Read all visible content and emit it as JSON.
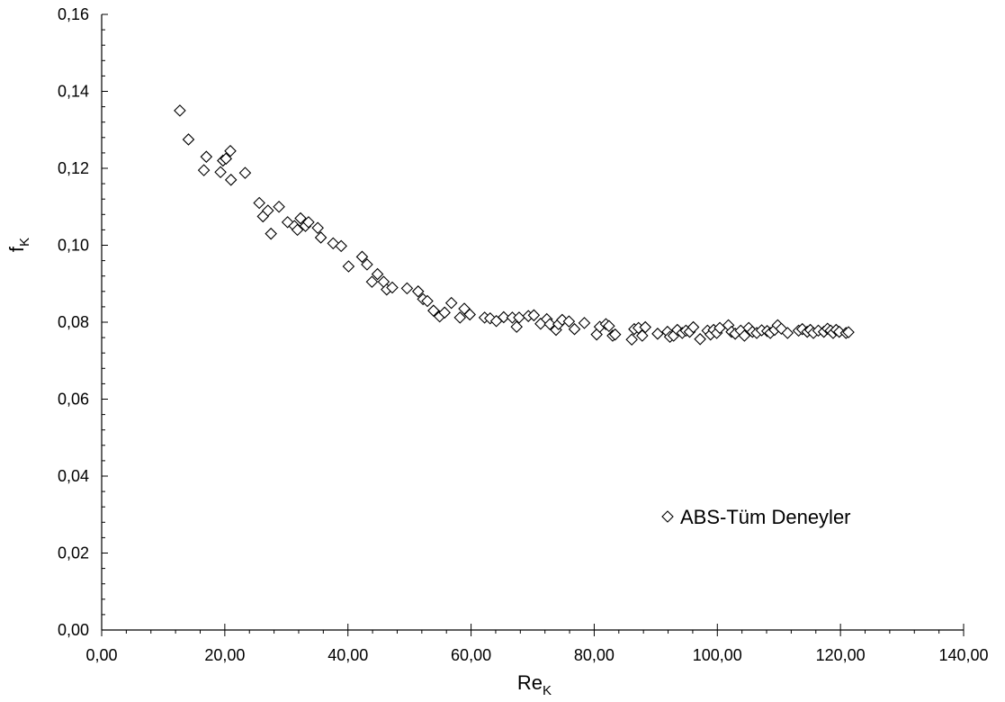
{
  "chart_data": {
    "type": "scatter",
    "title": "",
    "xlabel": {
      "main": "Re",
      "sub": "K"
    },
    "ylabel": {
      "main": "f",
      "sub": "K"
    },
    "xlim": [
      0,
      140
    ],
    "ylim": [
      0,
      0.16
    ],
    "x_ticks": [
      0,
      20,
      40,
      60,
      80,
      100,
      120,
      140
    ],
    "x_tick_labels": [
      "0,00",
      "20,00",
      "40,00",
      "60,00",
      "80,00",
      "100,00",
      "120,00",
      "140,00"
    ],
    "y_ticks": [
      0,
      0.02,
      0.04,
      0.06,
      0.08,
      0.1,
      0.12,
      0.14,
      0.16
    ],
    "y_tick_labels": [
      "0,00",
      "0,02",
      "0,04",
      "0,06",
      "0,08",
      "0,10",
      "0,12",
      "0,14",
      "0,16"
    ],
    "grid": false,
    "legend_position": "bottom-right",
    "colors": {
      "marker_fill": "#ffffff",
      "marker_stroke": "#000000",
      "axis": "#000000"
    },
    "series": [
      {
        "name": "ABS-Tüm Deneyler",
        "marker": "diamond-open",
        "points": [
          [
            12.7,
            0.135
          ],
          [
            14.1,
            0.1275
          ],
          [
            16.6,
            0.1195
          ],
          [
            17.0,
            0.123
          ],
          [
            19.3,
            0.119
          ],
          [
            19.7,
            0.122
          ],
          [
            20.2,
            0.1225
          ],
          [
            20.9,
            0.1245
          ],
          [
            21.0,
            0.117
          ],
          [
            23.3,
            0.1188
          ],
          [
            25.6,
            0.111
          ],
          [
            26.2,
            0.1075
          ],
          [
            27.0,
            0.109
          ],
          [
            27.5,
            0.103
          ],
          [
            28.8,
            0.11
          ],
          [
            30.2,
            0.106
          ],
          [
            31.3,
            0.105
          ],
          [
            31.8,
            0.104
          ],
          [
            32.3,
            0.107
          ],
          [
            33.1,
            0.105
          ],
          [
            33.6,
            0.106
          ],
          [
            35.1,
            0.1045
          ],
          [
            35.6,
            0.102
          ],
          [
            37.6,
            0.1005
          ],
          [
            38.9,
            0.0998
          ],
          [
            40.1,
            0.0945
          ],
          [
            42.3,
            0.097
          ],
          [
            43.1,
            0.095
          ],
          [
            43.9,
            0.0905
          ],
          [
            44.8,
            0.0925
          ],
          [
            45.8,
            0.0905
          ],
          [
            46.3,
            0.0885
          ],
          [
            47.2,
            0.089
          ],
          [
            49.6,
            0.0888
          ],
          [
            51.4,
            0.088
          ],
          [
            52.2,
            0.086
          ],
          [
            52.9,
            0.0855
          ],
          [
            53.9,
            0.083
          ],
          [
            54.9,
            0.0815
          ],
          [
            55.7,
            0.0825
          ],
          [
            56.8,
            0.085
          ],
          [
            58.2,
            0.0812
          ],
          [
            58.9,
            0.0835
          ],
          [
            59.8,
            0.082
          ],
          [
            62.2,
            0.0812
          ],
          [
            63.1,
            0.081
          ],
          [
            64.1,
            0.0803
          ],
          [
            65.3,
            0.0813
          ],
          [
            66.7,
            0.0812
          ],
          [
            67.4,
            0.0788
          ],
          [
            67.8,
            0.0812
          ],
          [
            69.3,
            0.0816
          ],
          [
            70.2,
            0.0818
          ],
          [
            71.3,
            0.0796
          ],
          [
            72.3,
            0.0808
          ],
          [
            72.8,
            0.0795
          ],
          [
            73.8,
            0.078
          ],
          [
            74.2,
            0.0795
          ],
          [
            74.8,
            0.0806
          ],
          [
            75.9,
            0.0802
          ],
          [
            76.8,
            0.0782
          ],
          [
            78.4,
            0.0798
          ],
          [
            80.4,
            0.0768
          ],
          [
            80.9,
            0.0788
          ],
          [
            81.9,
            0.0795
          ],
          [
            82.4,
            0.079
          ],
          [
            83.0,
            0.0765
          ],
          [
            83.4,
            0.0768
          ],
          [
            86.1,
            0.0755
          ],
          [
            86.5,
            0.0782
          ],
          [
            87.2,
            0.0785
          ],
          [
            87.8,
            0.0765
          ],
          [
            88.3,
            0.0787
          ],
          [
            90.3,
            0.077
          ],
          [
            91.9,
            0.0775
          ],
          [
            92.3,
            0.0762
          ],
          [
            92.9,
            0.0765
          ],
          [
            93.5,
            0.078
          ],
          [
            94.3,
            0.0772
          ],
          [
            94.9,
            0.0778
          ],
          [
            95.5,
            0.0775
          ],
          [
            96.1,
            0.0787
          ],
          [
            97.2,
            0.0756
          ],
          [
            98.4,
            0.0778
          ],
          [
            98.9,
            0.0768
          ],
          [
            99.4,
            0.078
          ],
          [
            99.9,
            0.0772
          ],
          [
            100.4,
            0.0785
          ],
          [
            101.8,
            0.0792
          ],
          [
            102.3,
            0.0775
          ],
          [
            102.9,
            0.077
          ],
          [
            103.8,
            0.0778
          ],
          [
            104.4,
            0.0765
          ],
          [
            105.1,
            0.0785
          ],
          [
            105.7,
            0.0775
          ],
          [
            106.4,
            0.0772
          ],
          [
            107.2,
            0.0779
          ],
          [
            108.1,
            0.0777
          ],
          [
            108.6,
            0.0772
          ],
          [
            109.3,
            0.078
          ],
          [
            109.8,
            0.0792
          ],
          [
            110.4,
            0.0783
          ],
          [
            111.4,
            0.0772
          ],
          [
            113.2,
            0.0778
          ],
          [
            113.8,
            0.0782
          ],
          [
            114.6,
            0.0775
          ],
          [
            115.1,
            0.078
          ],
          [
            115.6,
            0.0772
          ],
          [
            116.4,
            0.0778
          ],
          [
            117.3,
            0.0775
          ],
          [
            117.9,
            0.0783
          ],
          [
            118.4,
            0.0778
          ],
          [
            118.8,
            0.0772
          ],
          [
            119.3,
            0.078
          ],
          [
            119.8,
            0.0775
          ],
          [
            120.9,
            0.0772
          ],
          [
            121.3,
            0.0774
          ]
        ]
      }
    ]
  }
}
